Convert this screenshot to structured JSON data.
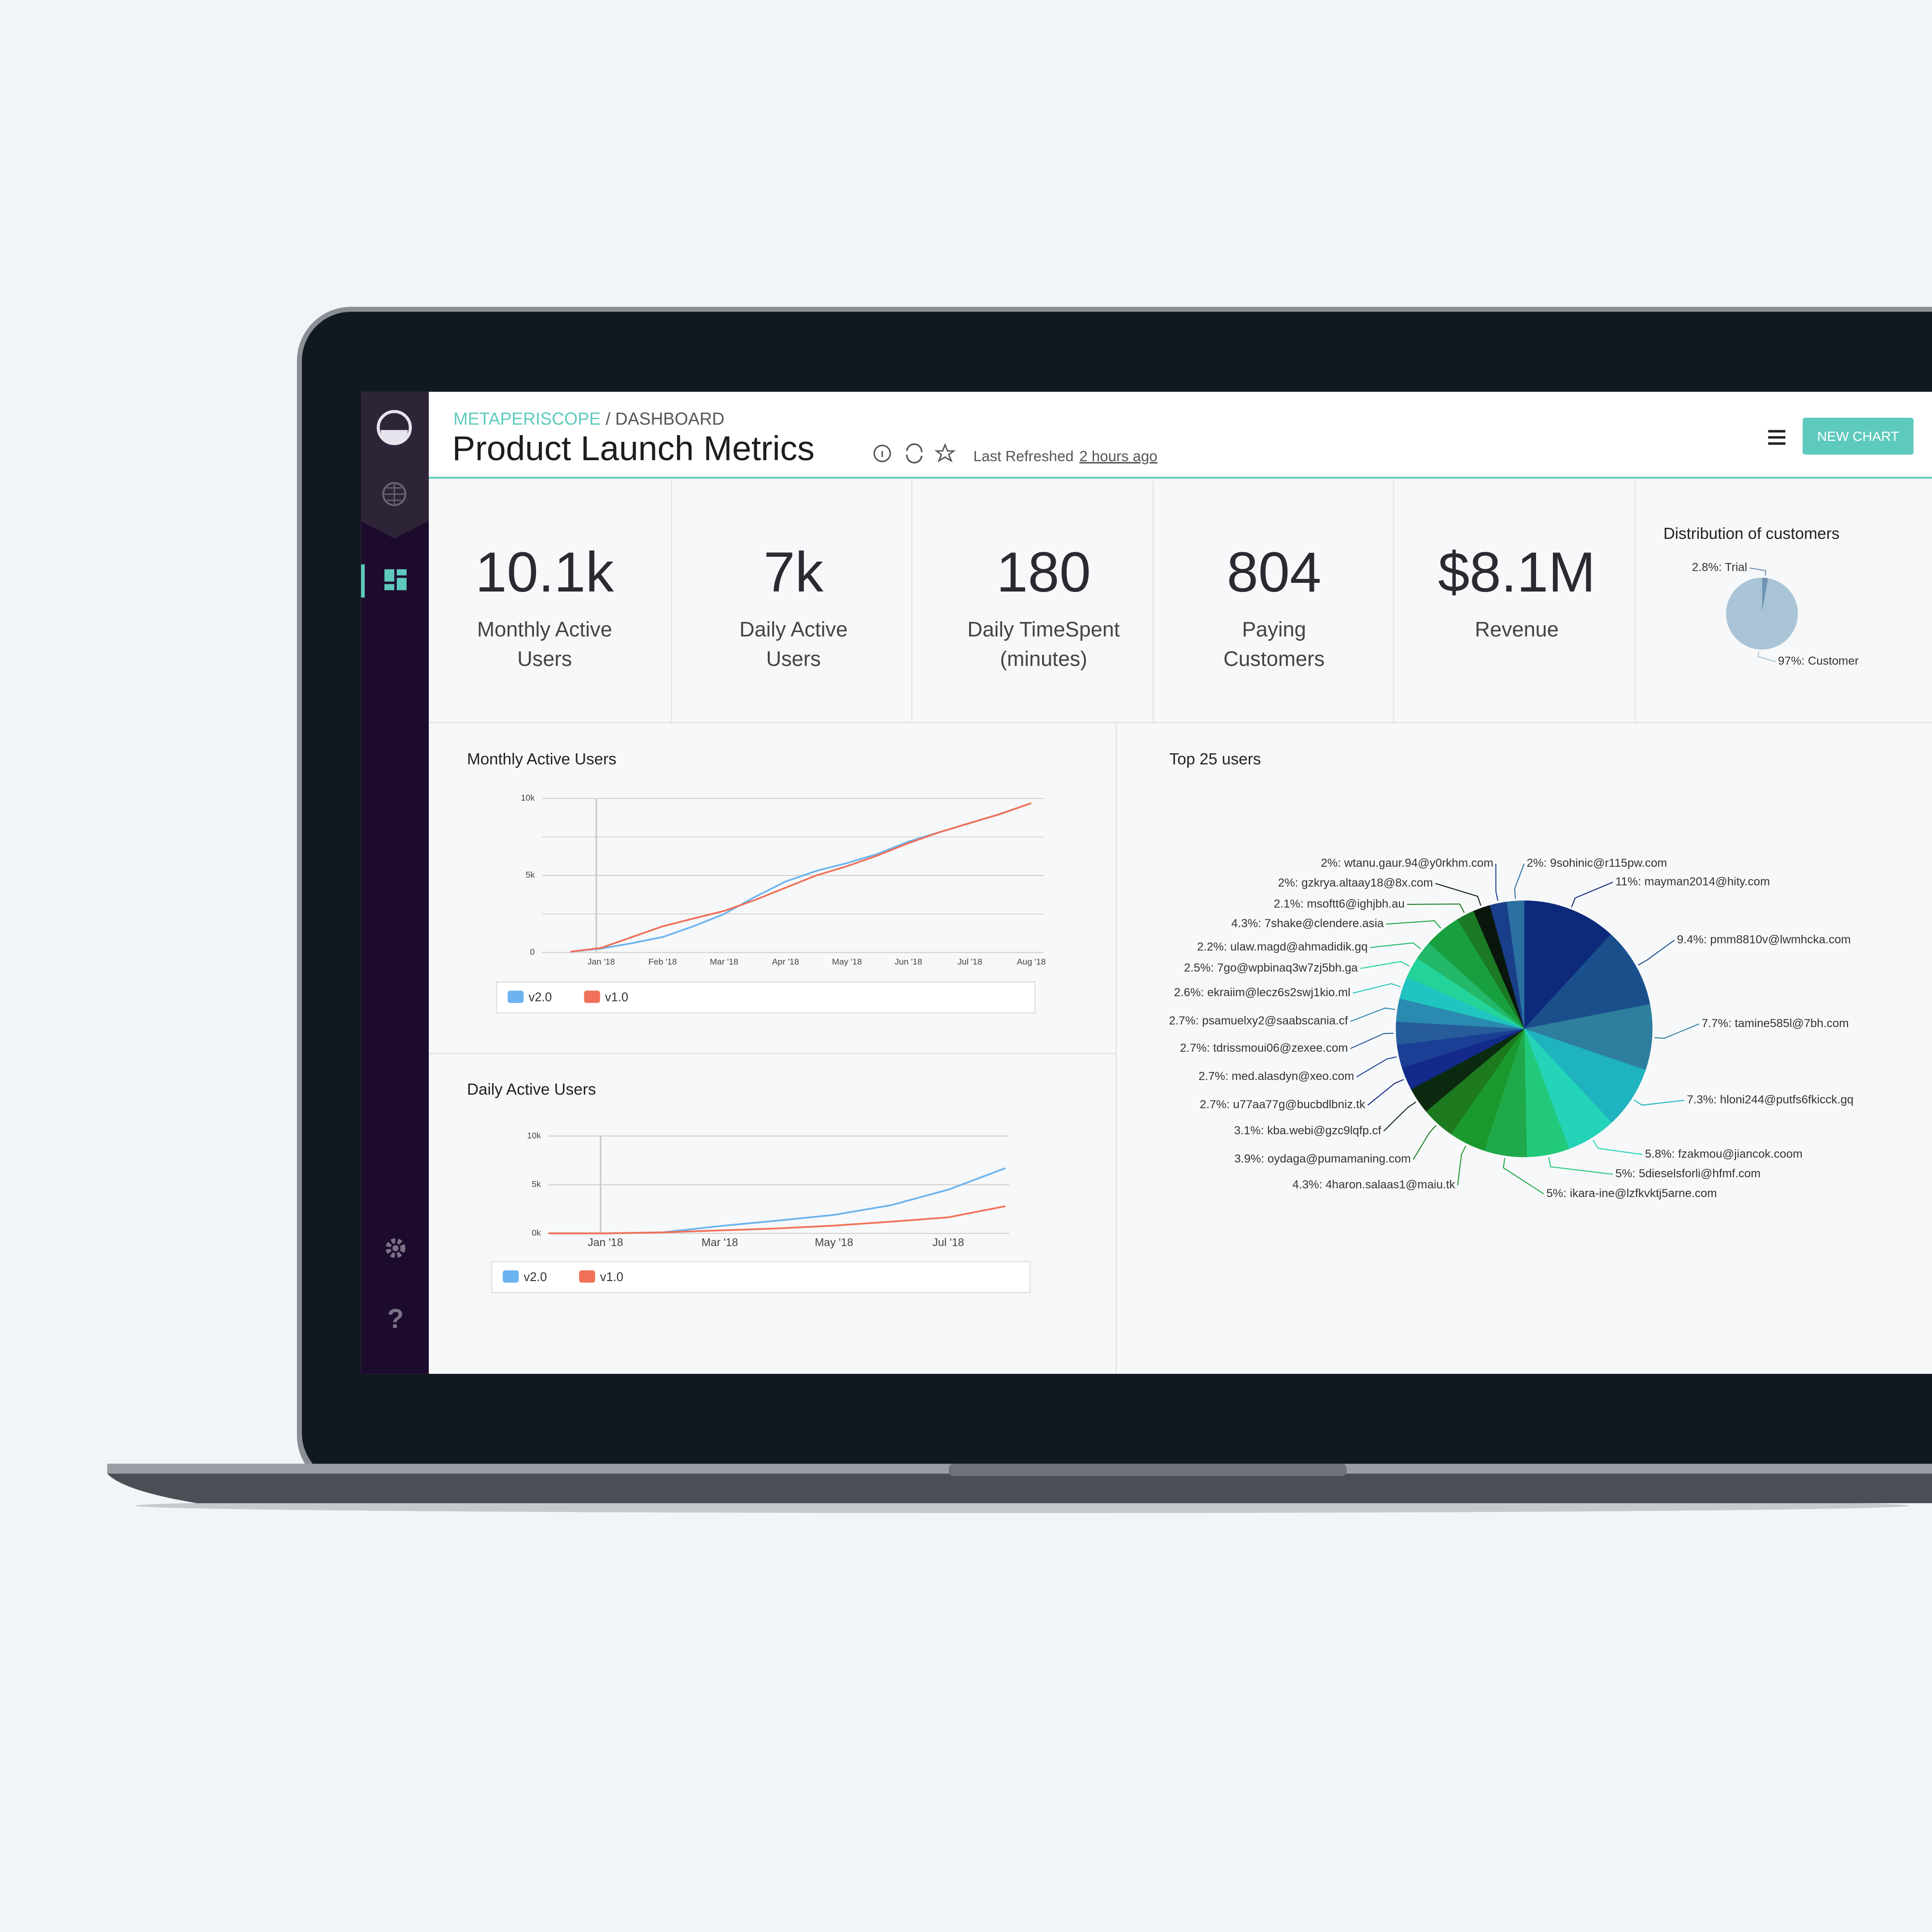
{
  "header": {
    "breadcrumb": "METAPERISCOPE",
    "section": "/ DASHBOARD",
    "title": "Product Launch Metrics",
    "refreshed_label": "Last Refreshed",
    "refreshed_time": "2 hours ago",
    "button": "NEW CHART"
  },
  "kpis": [
    {
      "value": "10.1k",
      "label": [
        "Monthly Active",
        "Users"
      ]
    },
    {
      "value": "7k",
      "label": [
        "Daily Active",
        "Users"
      ]
    },
    {
      "value": "180",
      "label": [
        "Daily TimeSpent",
        "(minutes)"
      ]
    },
    {
      "value": "804",
      "label": [
        "Paying",
        "Customers"
      ]
    },
    {
      "value": "$8.1M",
      "label": [
        "Revenue"
      ]
    }
  ],
  "charts": [
    {
      "type": "pie",
      "title": "Distribution of customers",
      "values": [
        2.8,
        97
      ],
      "value_labels": [
        "2.8%: Trial",
        "97%: Customer"
      ],
      "colors": [
        "#6f93b3",
        "#a9c4d6"
      ]
    },
    {
      "type": "line",
      "title": "Monthly Active Users",
      "categories": [
        null,
        "Jan '18",
        null,
        "Feb '18",
        null,
        "Mar '18",
        null,
        "Apr '18",
        null,
        "May '18",
        null,
        "Jun '18",
        null,
        "Jul '18",
        null,
        "Aug '18"
      ],
      "series": [
        {
          "name": "v2.0",
          "color": "#6cb4f0",
          "values": [
            50,
            250,
            600,
            1000,
            1700,
            2500,
            3600,
            4600,
            5300,
            5800,
            6400,
            7200,
            7800,
            8400,
            9000,
            9700
          ]
        },
        {
          "name": "v1.0",
          "color": "#f07058",
          "values": [
            50,
            300,
            1000,
            1700,
            2200,
            2700,
            3400,
            4200,
            5000,
            5600,
            6300,
            7100,
            7800,
            8400,
            9000,
            9700
          ]
        }
      ],
      "ylim": [
        0,
        10000
      ],
      "yticks": [
        0,
        {
          "value": 5000,
          "label": "5k"
        },
        {
          "value": 10000,
          "label": "10k"
        }
      ],
      "yminor": [
        2500,
        7500
      ],
      "grid": true
    },
    {
      "type": "line",
      "title": "Daily Active Users",
      "categories": [
        null,
        "Jan '18",
        null,
        "Mar '18",
        null,
        "May '18",
        null,
        "Jul '18",
        null
      ],
      "series": [
        {
          "name": "v2.0",
          "color": "#6cb4f0",
          "values": [
            0,
            0,
            100,
            750,
            1300,
            1900,
            2900,
            4500,
            6700
          ]
        },
        {
          "name": "v1.0",
          "color": "#f07058",
          "values": [
            0,
            0,
            100,
            300,
            500,
            800,
            1200,
            1650,
            2800
          ]
        }
      ],
      "ylim": [
        0,
        10000
      ],
      "yticks": [
        {
          "value": 0,
          "label": "0k"
        },
        {
          "value": 5000,
          "label": "5k"
        },
        {
          "value": 10000,
          "label": "10k"
        }
      ],
      "grid": true
    },
    {
      "type": "pie",
      "title": "Top 25 users",
      "values": [
        11,
        9.4,
        7.7,
        7.3,
        5.8,
        5,
        5,
        4.3,
        3.9,
        3.1,
        2.7,
        2.7,
        2.7,
        2.7,
        2.6,
        2.5,
        2.2,
        4.3,
        2.1,
        2,
        2,
        2
      ],
      "value_labels": [
        "11%: mayman2014@hity.com",
        "9.4%: pmm8810v@lwmhcka.com",
        "7.7%: tamine585l@7bh.com",
        "7.3%: hloni244@putfs6fkicck.gq",
        "5.8%: fzakmou@jiancok.coom",
        "5%: 5dieselsforli@hfmf.com",
        "5%: ikara-ine@lzfkvktj5arne.com",
        "4.3%: 4haron.salaas1@maiu.tk",
        "3.9%: oydaga@pumamaning.com",
        "3.1%: kba.webi@gzc9lqfp.cf",
        "2.7%: u77aa77g@bucbdlbniz.tk",
        "2.7%: med.alasdyn@xeo.com",
        "2.7%: tdrissmoui06@zexee.com",
        "2.7%: psamuelxy2@saabscania.cf",
        "2.6%: ekraiim@lecz6s2swj1kio.ml",
        "2.5%: 7go@wpbinaq3w7zj5bh.ga",
        "2.2%: ulaw.magd@ahmadidik.gq",
        "4.3%: 7shake@clendere.asia",
        "2.1%: msoftt6@ighjbh.au",
        "2%: gzkrya.altaay18@8x.com",
        "2%: wtanu.gaur.94@y0rkhm.com",
        "2%: 9sohinic@r115pw.com"
      ],
      "colors": [
        "#0d2a7a",
        "#1a4f8c",
        "#2e7e9e",
        "#1fb3c0",
        "#23d4b8",
        "#22c97a",
        "#1fa94a",
        "#1a9a2c",
        "#1d7a1f",
        "#0c2a10",
        "#132a8a",
        "#1b3f95",
        "#275c9a",
        "#2a8ab0",
        "#20c4c0",
        "#22d49a",
        "#24b86a",
        "#18a040",
        "#1c7a24",
        "#0a160c",
        "#1a3f8a",
        "#2a70a0"
      ]
    }
  ]
}
